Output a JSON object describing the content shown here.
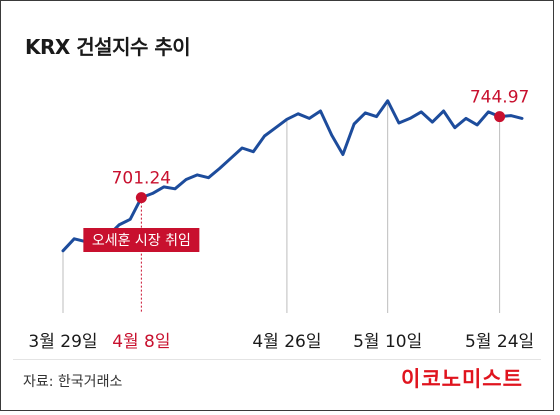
{
  "title": "KRX 건설지수 추이",
  "source": "자료: 한국거래소",
  "logo": "이코노미스트",
  "colors": {
    "line": "#1d4c9c",
    "accent": "#c8102e",
    "grid": "#bdbdbd",
    "text": "#1a1a1a"
  },
  "chart_data": {
    "type": "line",
    "title": "KRX 건설지수 추이",
    "x_tick_labels": [
      {
        "label": "3월 29일",
        "index": 0,
        "highlight": false
      },
      {
        "label": "4월 8일",
        "index": 7,
        "highlight": true
      },
      {
        "label": "4월 26일",
        "index": 20,
        "highlight": false
      },
      {
        "label": "5월 10일",
        "index": 29,
        "highlight": false
      },
      {
        "label": "5월 24일",
        "index": 39,
        "highlight": false
      }
    ],
    "series": [
      {
        "values": [
          672.5,
          679.0,
          677.5,
          683.0,
          680.5,
          686.5,
          689.5,
          701.24,
          703.5,
          707.0,
          706.0,
          711.0,
          713.5,
          712.0,
          717.0,
          722.5,
          728.0,
          726.0,
          734.5,
          739.0,
          743.5,
          746.5,
          744.0,
          748.0,
          735.0,
          724.5,
          741.0,
          747.0,
          745.0,
          753.5,
          741.5,
          744.0,
          747.5,
          742.0,
          748.0,
          739.0,
          744.0,
          740.5,
          747.5,
          744.97,
          745.5,
          744.0
        ]
      }
    ],
    "ylim": [
      640,
      775
    ],
    "annotations": [
      {
        "index": 7,
        "value": 701.24,
        "label": "701.24",
        "note": "오세훈 시장 취임"
      },
      {
        "index": 39,
        "value": 744.97,
        "label": "744.97"
      }
    ]
  }
}
